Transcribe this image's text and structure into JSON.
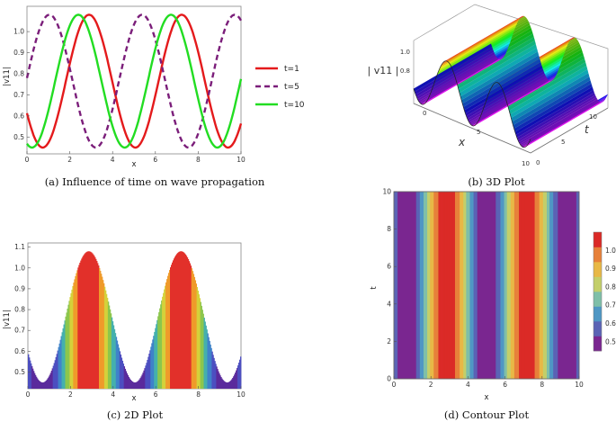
{
  "chart_data": [
    {
      "id": "a",
      "type": "line",
      "caption": "(a) Influence of time on wave propagation",
      "xlabel": "x",
      "ylabel": "|v11|",
      "xlim": [
        0,
        10
      ],
      "ylim": [
        0.42,
        1.12
      ],
      "xticks": [
        0,
        2,
        4,
        6,
        8,
        10
      ],
      "yticks": [
        0.5,
        0.6,
        0.7,
        0.8,
        0.9,
        1.0
      ],
      "model": {
        "mid": 0.765,
        "amp": 0.315,
        "period": 4.33
      },
      "series": [
        {
          "name": "t=1",
          "peak_x": 2.9,
          "color": "#e41a1c",
          "dash": "solid"
        },
        {
          "name": "t=5",
          "peak_x": 1.05,
          "color": "#7b1e7a",
          "dash": "dashed"
        },
        {
          "name": "t=10",
          "peak_x": 2.4,
          "color": "#22dd22",
          "dash": "solid"
        }
      ],
      "legend": "right"
    },
    {
      "id": "b",
      "type": "surface3d",
      "caption": "(b) 3D Plot",
      "xlabel": "x",
      "ylabel": "t",
      "zlabel": "| v11 |",
      "x_ticks": [
        "0",
        "5",
        "10"
      ],
      "t_ticks": [
        "0",
        "5",
        "10"
      ],
      "z_ticks": [
        "0.8",
        "1.0"
      ]
    },
    {
      "id": "c",
      "type": "area",
      "caption": "(c) 2D Plot",
      "xlabel": "x",
      "ylabel": "|v11|",
      "xlim": [
        0,
        10
      ],
      "ylim": [
        0.42,
        1.12
      ],
      "xticks": [
        0,
        2,
        4,
        6,
        8,
        10
      ],
      "yticks": [
        0.5,
        0.6,
        0.7,
        0.8,
        0.9,
        1.0,
        1.1
      ],
      "peak_x": 2.85,
      "model": {
        "mid": 0.765,
        "amp": 0.315,
        "period": 4.33
      }
    },
    {
      "id": "d",
      "type": "heatmap",
      "caption": "(d) Contour Plot",
      "xlabel": "x",
      "ylabel": "t",
      "xlim": [
        0,
        10
      ],
      "ylim": [
        0,
        10
      ],
      "xticks": [
        0,
        2,
        4,
        6,
        8,
        10
      ],
      "yticks": [
        0,
        2,
        4,
        6,
        8,
        10
      ],
      "colorbar_ticks": [
        0.5,
        0.6,
        0.7,
        0.8,
        0.9,
        1.0
      ],
      "colorbar_colors": [
        "#7a2690",
        "#5b63b5",
        "#4f97c4",
        "#7fbfa8",
        "#c3cf6a",
        "#e8b846",
        "#e7813a",
        "#db2a27"
      ],
      "colorbar_range": [
        0.45,
        1.1
      ],
      "peak_x": 2.85,
      "model": {
        "mid": 0.765,
        "amp": 0.315,
        "period": 4.33
      }
    }
  ]
}
